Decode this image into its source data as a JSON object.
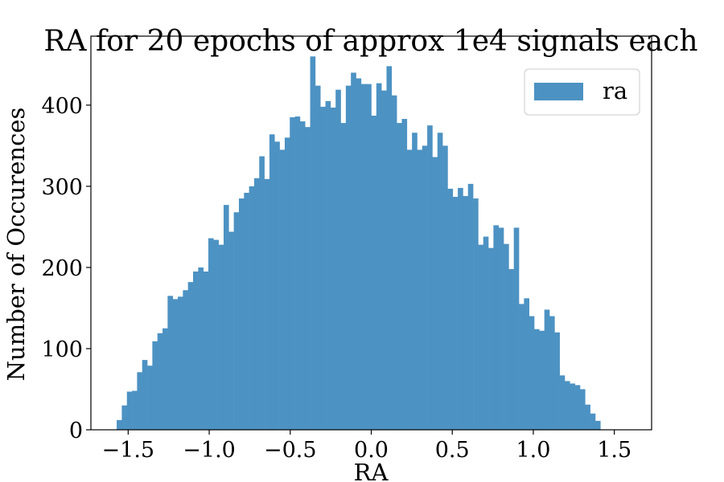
{
  "chart_data": {
    "type": "bar",
    "title": "RA for 20 epochs of approx 1e4 signals each",
    "xlabel": "RA",
    "ylabel": "Number of Occurences",
    "xlim": [
      -1.73,
      1.73
    ],
    "ylim": [
      0,
      485
    ],
    "xticks": [
      -1.5,
      -1.0,
      -0.5,
      0.0,
      0.5,
      1.0,
      1.5
    ],
    "xtick_labels": [
      "−1.5",
      "−1.0",
      "−0.5",
      "0.0",
      "0.5",
      "1.0",
      "1.5"
    ],
    "yticks": [
      0,
      100,
      200,
      300,
      400
    ],
    "ytick_labels": [
      "0",
      "100",
      "200",
      "300",
      "400"
    ],
    "bin_start": -1.5708,
    "bin_width": 0.031416,
    "grid": false,
    "legend_position": "top-right",
    "color": "#4c92c3",
    "series": [
      {
        "name": "ra",
        "values": [
          12,
          30,
          47,
          48,
          71,
          86,
          79,
          109,
          119,
          125,
          165,
          161,
          164,
          172,
          182,
          195,
          200,
          195,
          236,
          234,
          228,
          277,
          244,
          268,
          285,
          292,
          300,
          310,
          337,
          309,
          364,
          355,
          345,
          360,
          385,
          386,
          380,
          373,
          460,
          424,
          398,
          405,
          397,
          419,
          378,
          424,
          440,
          433,
          426,
          426,
          387,
          427,
          418,
          448,
          412,
          378,
          383,
          345,
          366,
          345,
          350,
          375,
          336,
          366,
          350,
          297,
          287,
          298,
          288,
          303,
          285,
          228,
          238,
          224,
          252,
          249,
          229,
          198,
          249,
          155,
          162,
          140,
          124,
          122,
          148,
          140,
          120,
          67,
          60,
          57,
          55,
          50,
          31,
          20,
          11
        ]
      }
    ]
  }
}
